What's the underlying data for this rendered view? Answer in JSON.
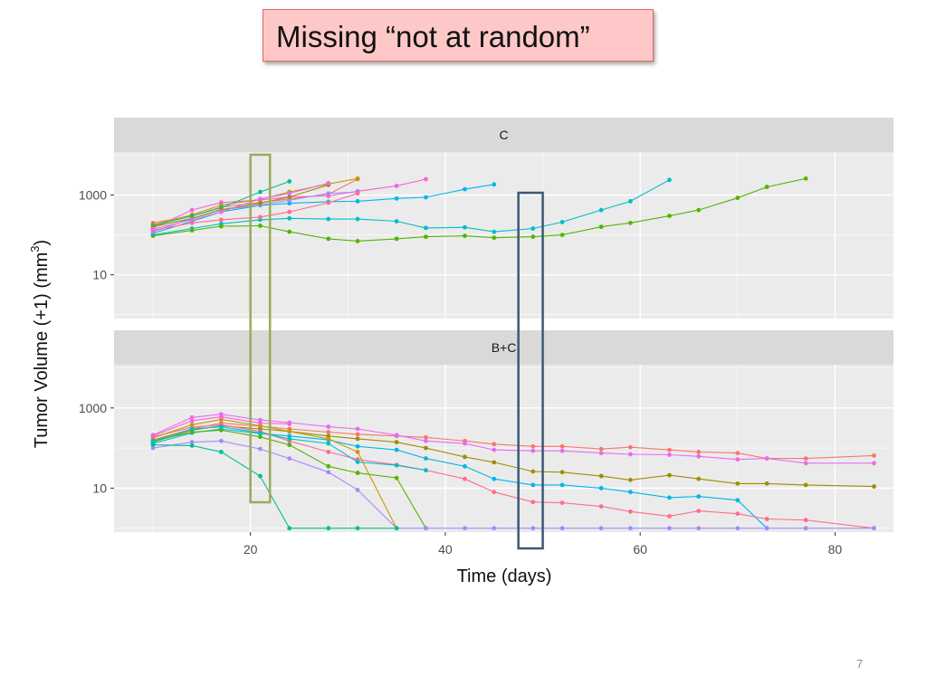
{
  "slide": {
    "title": "Missing “not at random”",
    "page_number": "7"
  },
  "chart_data": {
    "type": "line",
    "xlabel": "Time (days)",
    "ylabel": "Tumor Volume (+1) (mm",
    "ylabel_sup": "3",
    "xlim": [
      6,
      86
    ],
    "x_ticks": [
      20,
      40,
      60,
      80
    ],
    "y_scale": "log10",
    "y_ticks": [
      10,
      1000
    ],
    "grid": true,
    "legend": "none",
    "highlight_boxes": [
      {
        "x": [
          20,
          22
        ],
        "color": "#9aab5a"
      },
      {
        "x": [
          47.5,
          50
        ],
        "color": "#3b5876"
      }
    ],
    "panels": [
      {
        "strip": "C",
        "ylim": [
          0.8,
          12000
        ],
        "series": [
          {
            "color": "#00bfc4",
            "x": [
              10,
              14,
              17,
              21,
              24,
              28,
              31,
              35,
              38,
              42,
              45,
              49,
              52,
              56,
              59,
              63
            ],
            "y": [
              100,
              145,
              190,
              240,
              260,
              250,
              250,
              220,
              150,
              155,
              120,
              145,
              210,
              420,
              700,
              2400
            ]
          },
          {
            "color": "#53b400",
            "x": [
              10,
              14,
              17,
              21,
              24,
              28,
              31,
              35,
              38,
              42,
              45,
              49,
              52,
              56,
              59,
              63,
              66,
              70,
              73,
              77
            ],
            "y": [
              95,
              130,
              165,
              170,
              120,
              80,
              70,
              80,
              90,
              95,
              85,
              90,
              100,
              160,
              200,
              300,
              420,
              850,
              1600,
              2600
            ]
          },
          {
            "color": "#00b6eb",
            "x": [
              10,
              14,
              17,
              21,
              24,
              28,
              31,
              35,
              38,
              42,
              45
            ],
            "y": [
              110,
              220,
              380,
              550,
              620,
              680,
              700,
              820,
              880,
              1400,
              1850
            ]
          },
          {
            "color": "#fb61d7",
            "x": [
              10,
              14,
              17,
              21,
              24,
              28,
              31,
              35,
              38
            ],
            "y": [
              150,
              420,
              650,
              750,
              900,
              950,
              1250,
              1700,
              2500
            ]
          },
          {
            "color": "#f8766d",
            "x": [
              10,
              14,
              17,
              21,
              24,
              28,
              31
            ],
            "y": [
              200,
              300,
              500,
              650,
              800,
              1050,
              2500
            ]
          },
          {
            "color": "#c49a00",
            "x": [
              10,
              14,
              17,
              21,
              24,
              28,
              31
            ],
            "y": [
              180,
              320,
              560,
              780,
              1200,
              1900,
              2600
            ]
          },
          {
            "color": "#00c094",
            "x": [
              10,
              14,
              17,
              21,
              24
            ],
            "y": [
              170,
              300,
              480,
              1200,
              2200
            ]
          },
          {
            "color": "#a58aff",
            "x": [
              10,
              14,
              17,
              21,
              24,
              28,
              31
            ],
            "y": [
              120,
              260,
              420,
              560,
              740,
              1100,
              1200
            ]
          },
          {
            "color": "#ff6c91",
            "x": [
              10,
              14,
              17,
              21,
              24,
              28,
              31
            ],
            "y": [
              130,
              200,
              240,
              280,
              380,
              640,
              1100
            ]
          },
          {
            "color": "#9c8f00",
            "x": [
              10,
              14,
              17,
              21,
              24,
              28
            ],
            "y": [
              160,
              260,
              430,
              620,
              900,
              1800
            ]
          },
          {
            "color": "#e76bf3",
            "x": [
              10,
              14,
              17,
              21,
              24,
              28
            ],
            "y": [
              140,
              240,
              380,
              800,
              1100,
              2000
            ]
          }
        ]
      },
      {
        "strip": "B+C",
        "ylim": [
          0.8,
          12000
        ],
        "series": [
          {
            "color": "#f8766d",
            "x": [
              10,
              14,
              17,
              21,
              24,
              28,
              31,
              35,
              38,
              42,
              45,
              49,
              52,
              56,
              59,
              63,
              66,
              70,
              73,
              77,
              84
            ],
            "y": [
              160,
              300,
              420,
              350,
              300,
              250,
              220,
              200,
              185,
              150,
              125,
              110,
              110,
              95,
              105,
              90,
              80,
              75,
              55,
              55,
              65
            ]
          },
          {
            "color": "#e76bf3",
            "x": [
              10,
              14,
              17,
              21,
              24,
              28,
              31,
              35,
              38,
              42,
              45,
              49,
              52,
              56,
              59,
              63,
              66,
              70,
              73,
              77,
              84
            ],
            "y": [
              210,
              580,
              700,
              500,
              430,
              340,
              300,
              210,
              150,
              130,
              90,
              85,
              85,
              75,
              70,
              68,
              62,
              52,
              55,
              42,
              42
            ]
          },
          {
            "color": "#9c8f00",
            "x": [
              10,
              14,
              17,
              21,
              24,
              28,
              31,
              35,
              38,
              42,
              45,
              49,
              52,
              56,
              59,
              63,
              66,
              70,
              73,
              77,
              84
            ],
            "y": [
              140,
              280,
              360,
              300,
              260,
              200,
              170,
              140,
              100,
              60,
              44,
              26,
              25,
              20,
              16,
              21,
              17,
              13,
              13,
              12,
              11
            ]
          },
          {
            "color": "#00b6eb",
            "x": [
              10,
              14,
              17,
              21,
              24,
              28,
              31,
              35,
              38,
              42,
              45,
              49,
              52,
              56,
              59,
              63,
              66,
              70,
              73
            ],
            "y": [
              130,
              240,
              300,
              230,
              200,
              160,
              110,
              90,
              55,
              35,
              17,
              12,
              12,
              10,
              8,
              5.8,
              6.2,
              5,
              1
            ]
          },
          {
            "color": "#ff6c91",
            "x": [
              10,
              14,
              17,
              21,
              24,
              28,
              31,
              35,
              38,
              42,
              45,
              49,
              52,
              56,
              59,
              63,
              66,
              70,
              73,
              77,
              84
            ],
            "y": [
              190,
              330,
              380,
              260,
              150,
              80,
              52,
              38,
              28,
              17,
              8,
              4.5,
              4.3,
              3.5,
              2.6,
              2,
              2.7,
              2.3,
              1.7,
              1.6,
              1
            ]
          },
          {
            "color": "#53b400",
            "x": [
              10,
              14,
              17,
              21,
              24,
              28,
              31,
              35,
              38
            ],
            "y": [
              150,
              250,
              280,
              190,
              120,
              35,
              24,
              18,
              1
            ]
          },
          {
            "color": "#c49a00",
            "x": [
              10,
              14,
              17,
              21,
              24,
              28,
              31,
              35
            ],
            "y": [
              180,
              380,
              520,
              360,
              260,
              170,
              80,
              1
            ]
          },
          {
            "color": "#00bfc4",
            "x": [
              10,
              14,
              17,
              21,
              24,
              28,
              31,
              35,
              38
            ],
            "y": [
              150,
              300,
              340,
              240,
              170,
              130,
              45,
              37,
              28
            ]
          },
          {
            "color": "#a58aff",
            "x": [
              10,
              14,
              17,
              21,
              24,
              28,
              31,
              35,
              38,
              42,
              45,
              49,
              52,
              56,
              59,
              63,
              66,
              70,
              73,
              77,
              84
            ],
            "y": [
              100,
              140,
              150,
              95,
              55,
              25,
              9,
              1,
              1,
              1,
              1,
              1,
              1,
              1,
              1,
              1,
              1,
              1,
              1,
              1,
              1
            ]
          },
          {
            "color": "#00c094",
            "x": [
              10,
              14,
              17,
              21,
              24,
              28,
              31,
              35
            ],
            "y": [
              120,
              115,
              80,
              20,
              1,
              1,
              1,
              1
            ]
          },
          {
            "color": "#fb61d7",
            "x": [
              10,
              14,
              17,
              21,
              24
            ],
            "y": [
              200,
              480,
              600,
              420,
              400
            ]
          }
        ]
      }
    ]
  }
}
